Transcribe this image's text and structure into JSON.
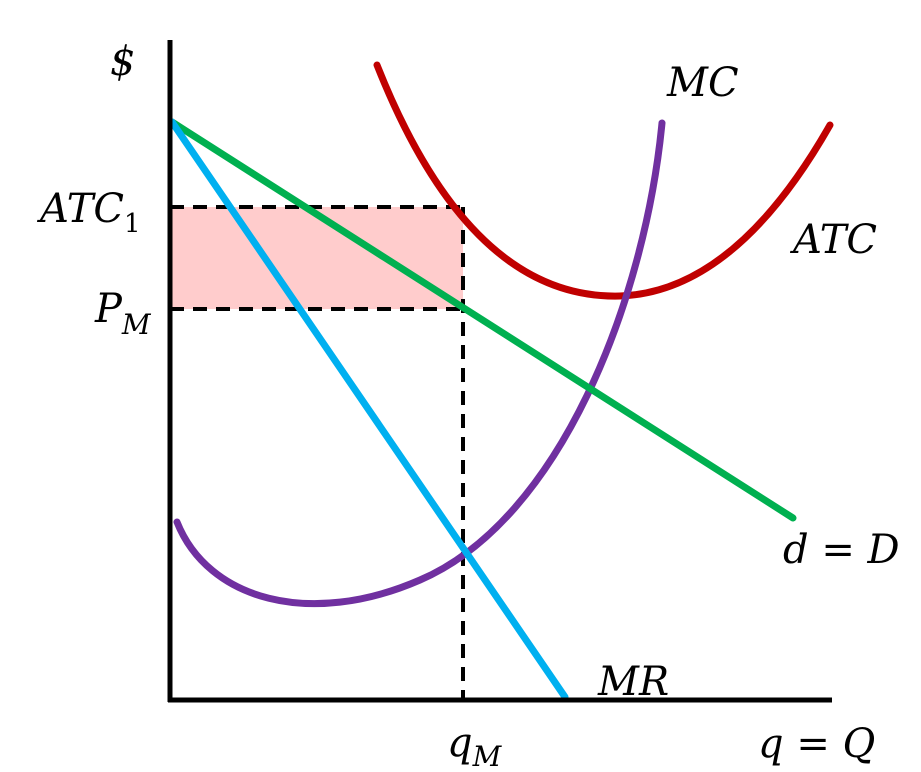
{
  "labels": {
    "y_axis": "$",
    "x_axis": "q = Q",
    "atc_level": {
      "main": "ATC",
      "sub": "1"
    },
    "price_level": {
      "main": "P",
      "sub": "M"
    },
    "quantity_level": {
      "main": "q",
      "sub": "M"
    },
    "mc_curve": "MC",
    "atc_curve": "ATC",
    "demand_curve": "d = D",
    "mr_curve": "MR"
  },
  "colors": {
    "axis": "#000000",
    "demand": "#00b050",
    "mr": "#00b0f0",
    "mc": "#7030a0",
    "atc": "#c00000",
    "loss_area": "#ffcccc",
    "guides": "#000000"
  }
}
